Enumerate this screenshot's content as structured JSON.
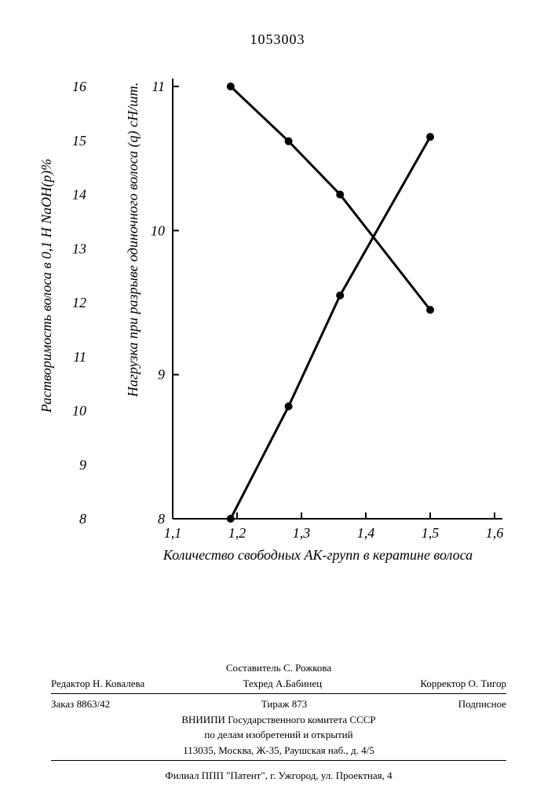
{
  "doc_number": "1053003",
  "chart": {
    "type": "line-dual-y",
    "background_color": "#ffffff",
    "axis_color": "#000000",
    "line_color": "#000000",
    "line_width": 3,
    "marker_radius": 5,
    "marker_color": "#000000",
    "tick_length": 8,
    "font_size_ticks": 18,
    "font_size_labels": 18,
    "x_axis": {
      "label": "Количество свободных АК-групп в кератине волоса",
      "min": 1.1,
      "max": 1.6,
      "ticks": [
        1.1,
        1.2,
        1.3,
        1.4,
        1.5,
        1.6
      ],
      "tick_labels": [
        "1,1",
        "1,2",
        "1,3",
        "1,4",
        "1,5",
        "1,6"
      ]
    },
    "y_left_outer": {
      "label": "Растворимость волоса в 0,1 Н NaOH(р)%",
      "min": 8,
      "max": 16,
      "ticks": [
        8,
        9,
        10,
        11,
        12,
        13,
        14,
        15,
        16
      ]
    },
    "y_left_inner": {
      "label": "Нагрузка при разрыве одиночного волоса (q) сН/шт.",
      "min": 8,
      "max": 11,
      "ticks": [
        8,
        9,
        10,
        11
      ]
    },
    "series_descending": {
      "description": "Нагрузка при разрыве (inner y-axis)",
      "x": [
        1.19,
        1.28,
        1.36,
        1.5
      ],
      "y_inner": [
        11.0,
        10.62,
        10.25,
        9.45
      ]
    },
    "series_ascending": {
      "description": "Растворимость (inner y-axis scale visually)",
      "x": [
        1.19,
        1.28,
        1.36,
        1.5
      ],
      "y_inner": [
        8.0,
        8.78,
        9.55,
        10.65
      ]
    }
  },
  "footer": {
    "compiler_prefix": "Составитель",
    "compiler": "С. Рожкова",
    "editor_prefix": "Редактор",
    "editor": "Н. Ковалева",
    "techred_prefix": "Техред",
    "techred": "А.Бабинец",
    "corrector_prefix": "Корректор",
    "corrector": "О. Тигор",
    "order_prefix": "Заказ",
    "order": "8863/42",
    "tirage_prefix": "Тираж",
    "tirage": "873",
    "subscription": "Подписное",
    "org1": "ВНИИПИ Государственного комитета СССР",
    "org2": "по делам изобретений и открытий",
    "address1": "113035, Москва, Ж-35, Раушская наб., д. 4/5",
    "branch": "Филиал ППП \"Патент\", г. Ужгород, ул. Проектная, 4"
  }
}
